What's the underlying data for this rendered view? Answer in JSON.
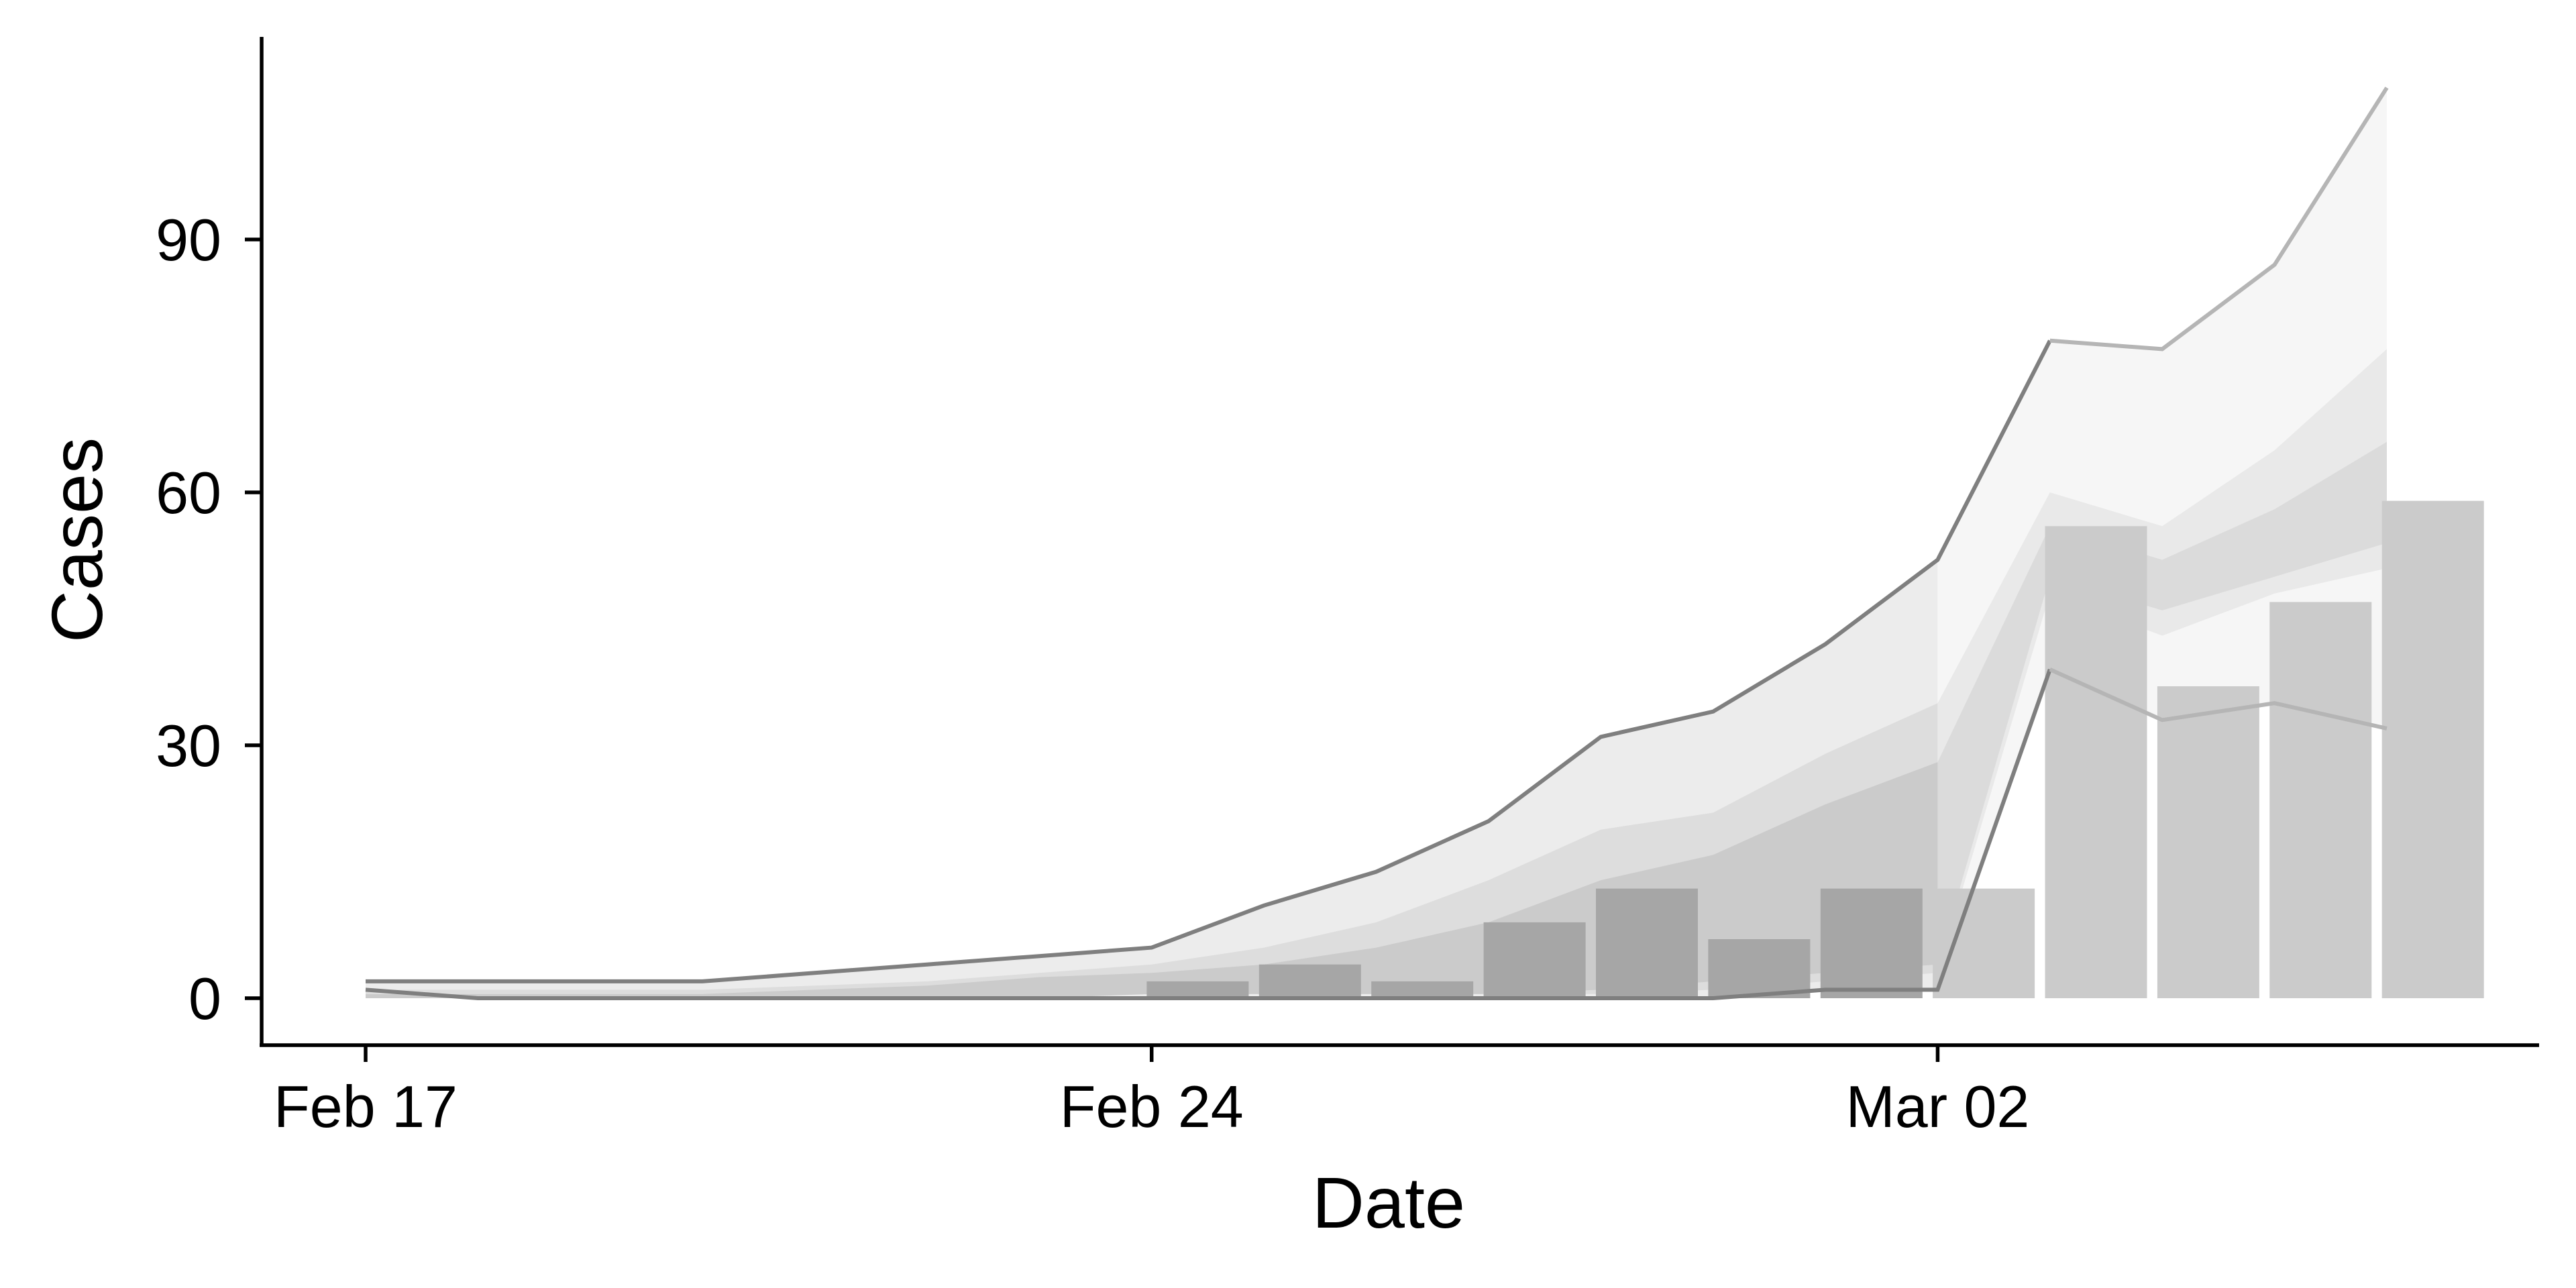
{
  "chart_data": {
    "type": "bar",
    "title": "",
    "xlabel": "Date",
    "ylabel": "Cases",
    "x_tick_labels": [
      {
        "day": 0,
        "label": "Feb 17"
      },
      {
        "day": 7,
        "label": "Feb 24"
      },
      {
        "day": 14,
        "label": "Mar 02"
      }
    ],
    "y_ticks": [
      0,
      30,
      60,
      90
    ],
    "xlim": [
      -0.9,
      19.4
    ],
    "ylim": [
      -5,
      114
    ],
    "grid": false,
    "legend": "none",
    "colors": {
      "bar_past": "#a6a6a6",
      "bar_recent": "#cbcbcb",
      "band_outer_past": "#ececec",
      "band_outer_recent": "#f6f6f6",
      "band_mid_past": "#dddddd",
      "band_mid_recent": "#e9e9e9",
      "band_inner_past": "#cbcbcb",
      "band_inner_recent": "#dbdbdb",
      "line_past": "#7f7f7f",
      "line_recent": "#b5b5b5",
      "axis": "#000000"
    },
    "bars": {
      "days": [
        7,
        8,
        9,
        10,
        11,
        12,
        13,
        14,
        15,
        16,
        17,
        18
      ],
      "values": [
        2,
        4,
        2,
        9,
        13,
        7,
        13,
        13,
        56,
        37,
        47,
        59
      ]
    },
    "recent_from_day": 14,
    "intervals": {
      "days": [
        0,
        1,
        2,
        3,
        4,
        5,
        6,
        7,
        8,
        9,
        10,
        11,
        12,
        13,
        14,
        15,
        16,
        17,
        18
      ],
      "outer_upper": [
        2,
        2,
        2,
        2,
        3,
        4,
        5,
        6,
        11,
        15,
        21,
        31,
        34,
        42,
        52,
        78,
        77,
        87,
        108
      ],
      "outer_lower": [
        1,
        0,
        0,
        0,
        0,
        0,
        0,
        0,
        0,
        0,
        0,
        0,
        0,
        1,
        1,
        39,
        33,
        35,
        32
      ],
      "mid_upper": [
        1,
        1,
        1,
        1,
        1.5,
        2,
        3,
        4,
        6,
        9,
        14,
        20,
        22,
        29,
        35,
        60,
        56,
        65,
        77
      ],
      "mid_lower": [
        0.5,
        0.5,
        0.5,
        0.5,
        0.5,
        0.5,
        0.5,
        0.5,
        0.5,
        0.5,
        0.5,
        0.5,
        1,
        2,
        3,
        48,
        43,
        48,
        51
      ],
      "inner_upper": [
        0.5,
        0.5,
        0.5,
        0.5,
        1,
        1.5,
        2.5,
        3,
        4,
        6,
        9,
        14,
        17,
        23,
        28,
        56,
        52,
        58,
        66
      ],
      "inner_lower": [
        0,
        0,
        0,
        0,
        0,
        0,
        0,
        0.5,
        0.5,
        0.5,
        0.5,
        1,
        2,
        3,
        4,
        50,
        46,
        50,
        54
      ]
    }
  }
}
